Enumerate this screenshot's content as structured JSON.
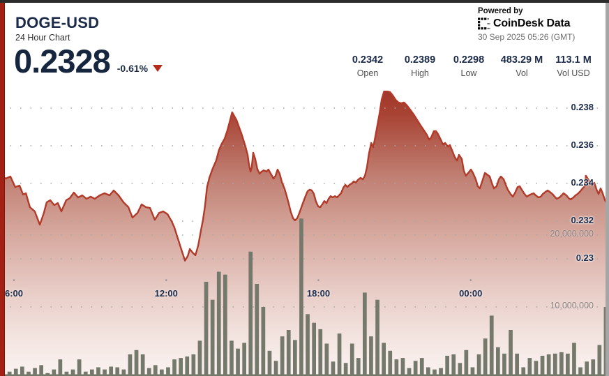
{
  "header": {
    "symbol": "DOGE-USD",
    "subtitle": "24 Hour Chart",
    "price": "0.2328",
    "change_pct": "-0.61%",
    "change_direction": "down",
    "powered_by": "Powered by",
    "brand": "CoinDesk Data",
    "timestamp": "30 Sep 2025 05:26 (GMT)"
  },
  "stats": {
    "items": [
      {
        "value": "0.2342",
        "label": "Open"
      },
      {
        "value": "0.2389",
        "label": "High"
      },
      {
        "value": "0.2298",
        "label": "Low"
      },
      {
        "value": "483.29 M",
        "label": "Vol"
      },
      {
        "value": "113.1 M",
        "label": "Vol USD"
      }
    ]
  },
  "colors": {
    "accent_line": "#b23a29",
    "left_bar": "#a32114",
    "navy_text": "#1b2b49",
    "volume_bar": "#75796b",
    "grid_dot": "#a8a8a8",
    "delta_triangle": "#b7291b"
  },
  "chart_data": {
    "type": "area",
    "title": "DOGE-USD 24 Hour Chart",
    "grid": "dotted-horizontal",
    "x_axis": {
      "start_time": "05:30",
      "span_hours": 24,
      "tick_labels": [
        "6:00",
        "12:00",
        "18:00",
        "00:00"
      ],
      "tick_hours_from_start": [
        0.55,
        6.55,
        12.55,
        18.55
      ]
    },
    "price_axis": {
      "side": "right",
      "tick_labels": [
        "0.238",
        "0.236",
        "0.234",
        "0.232",
        "0.23"
      ],
      "tick_values": [
        0.238,
        0.236,
        0.234,
        0.232,
        0.23
      ],
      "range": [
        0.229,
        0.2389
      ]
    },
    "volume_axis": {
      "side": "right",
      "tick_labels": [
        "20,000,000",
        "10,000,000"
      ],
      "tick_values": [
        20000000,
        10000000
      ]
    },
    "price_series": {
      "name": "DOGE-USD price",
      "color": "#b23a29",
      "t_hours": [
        0,
        0.22,
        0.41,
        0.6,
        0.77,
        0.91,
        1.02,
        1.18,
        1.37,
        1.57,
        1.73,
        1.84,
        1.98,
        2.14,
        2.28,
        2.42,
        2.61,
        2.75,
        2.91,
        3.08,
        3.24,
        3.41,
        3.57,
        3.74,
        3.93,
        4.12,
        4.32,
        4.48,
        4.67,
        4.87,
        5.06,
        5.22,
        5.42,
        5.58,
        5.75,
        5.91,
        6.1,
        6.27,
        6.43,
        6.6,
        6.76,
        6.87,
        7.01,
        7.15,
        7.29,
        7.4,
        7.48,
        7.59,
        7.7,
        7.81,
        7.92,
        8,
        8.08,
        8.16,
        8.25,
        8.38,
        8.52,
        8.63,
        8.74,
        8.85,
        8.96,
        9.07,
        9.15,
        9.24,
        9.32,
        9.43,
        9.51,
        9.59,
        9.68,
        9.76,
        9.81,
        9.87,
        9.92,
        9.98,
        10.06,
        10.14,
        10.23,
        10.31,
        10.39,
        10.5,
        10.58,
        10.67,
        10.78,
        10.86,
        10.94,
        11.02,
        11.11,
        11.22,
        11.3,
        11.38,
        11.46,
        11.55,
        11.63,
        11.71,
        11.79,
        11.88,
        11.96,
        12.04,
        12.12,
        12.21,
        12.29,
        12.37,
        12.45,
        12.54,
        12.62,
        12.7,
        12.78,
        12.87,
        12.95,
        13.03,
        13.11,
        13.2,
        13.28,
        13.36,
        13.44,
        13.53,
        13.61,
        13.69,
        13.77,
        13.86,
        13.94,
        14.02,
        14.1,
        14.21,
        14.3,
        14.38,
        14.46,
        14.54,
        14.63,
        14.71,
        14.79,
        14.87,
        14.96,
        15.04,
        15.15,
        15.26,
        15.37,
        15.48,
        15.59,
        15.7,
        15.81,
        15.92,
        16.03,
        16.16,
        16.3,
        16.44,
        16.58,
        16.71,
        16.82,
        16.91,
        16.99,
        17.1,
        17.18,
        17.26,
        17.37,
        17.46,
        17.54,
        17.65,
        17.73,
        17.81,
        17.92,
        18.01,
        18.09,
        18.2,
        18.28,
        18.36,
        18.47,
        18.56,
        18.64,
        18.75,
        18.83,
        18.91,
        19.02,
        19.11,
        19.19,
        19.3,
        19.38,
        19.46,
        19.57,
        19.66,
        19.74,
        19.85,
        19.93,
        20.01,
        20.12,
        20.21,
        20.29,
        20.4,
        20.48,
        20.56,
        20.67,
        20.76,
        20.84,
        20.95,
        21.03,
        21.11,
        21.22,
        21.31,
        21.39,
        21.5,
        21.58,
        21.66,
        21.77,
        21.86,
        21.94,
        22.05,
        22.13,
        22.21,
        22.32,
        22.41,
        22.49,
        22.6,
        22.68,
        22.76,
        22.87,
        22.96,
        23.04,
        23.09,
        23.23,
        23.31,
        23.42,
        23.51,
        23.59,
        23.67,
        23.75,
        23.84,
        23.92,
        24
      ],
      "prices": [
        0.23448,
        0.23426,
        0.23437,
        0.23381,
        0.23389,
        0.23341,
        0.23348,
        0.23274,
        0.23252,
        0.23181,
        0.23244,
        0.233,
        0.23311,
        0.23285,
        0.23296,
        0.23252,
        0.23311,
        0.23322,
        0.23352,
        0.23326,
        0.23337,
        0.23319,
        0.2333,
        0.23319,
        0.23337,
        0.23348,
        0.23337,
        0.23363,
        0.23337,
        0.233,
        0.23274,
        0.23219,
        0.23244,
        0.23289,
        0.23274,
        0.2327,
        0.23207,
        0.23244,
        0.23252,
        0.23237,
        0.232,
        0.23167,
        0.23107,
        0.23048,
        0.2299,
        0.23015,
        0.23052,
        0.23033,
        0.23019,
        0.2307,
        0.23152,
        0.23207,
        0.23281,
        0.23381,
        0.2343,
        0.23478,
        0.23522,
        0.23578,
        0.23611,
        0.23637,
        0.23681,
        0.23737,
        0.23778,
        0.23756,
        0.23737,
        0.23696,
        0.23667,
        0.23633,
        0.23593,
        0.23552,
        0.23504,
        0.23463,
        0.23485,
        0.23563,
        0.2353,
        0.23478,
        0.23452,
        0.23463,
        0.2347,
        0.23463,
        0.23474,
        0.23452,
        0.23426,
        0.23441,
        0.23474,
        0.23452,
        0.23407,
        0.2337,
        0.23333,
        0.23293,
        0.23248,
        0.23215,
        0.23204,
        0.23215,
        0.23241,
        0.23274,
        0.23304,
        0.23333,
        0.23359,
        0.23367,
        0.23363,
        0.23344,
        0.23304,
        0.23278,
        0.23274,
        0.23289,
        0.23307,
        0.23296,
        0.23319,
        0.23333,
        0.23326,
        0.23333,
        0.23326,
        0.23337,
        0.23348,
        0.23378,
        0.23393,
        0.23381,
        0.23393,
        0.234,
        0.23411,
        0.23404,
        0.23419,
        0.2343,
        0.23422,
        0.23441,
        0.23485,
        0.23559,
        0.23615,
        0.23593,
        0.23648,
        0.23707,
        0.23774,
        0.23844,
        0.23896,
        0.23889,
        0.23885,
        0.23867,
        0.23844,
        0.2383,
        0.23826,
        0.2383,
        0.23815,
        0.23793,
        0.23767,
        0.23737,
        0.23707,
        0.23681,
        0.23659,
        0.23633,
        0.23644,
        0.23678,
        0.23678,
        0.23663,
        0.23633,
        0.23607,
        0.23615,
        0.23596,
        0.23604,
        0.23578,
        0.23541,
        0.23522,
        0.23552,
        0.2353,
        0.23467,
        0.23441,
        0.23459,
        0.23474,
        0.23456,
        0.23422,
        0.23385,
        0.23374,
        0.23419,
        0.23456,
        0.23448,
        0.23437,
        0.23404,
        0.23374,
        0.23385,
        0.23422,
        0.23437,
        0.23422,
        0.23393,
        0.23367,
        0.23344,
        0.2333,
        0.23348,
        0.23381,
        0.23385,
        0.23367,
        0.23344,
        0.2333,
        0.23337,
        0.23344,
        0.23348,
        0.23337,
        0.23326,
        0.2333,
        0.23344,
        0.23356,
        0.23363,
        0.23356,
        0.23344,
        0.2333,
        0.23319,
        0.23326,
        0.23337,
        0.23348,
        0.23337,
        0.23322,
        0.23315,
        0.23326,
        0.23337,
        0.23344,
        0.23359,
        0.23374,
        0.23385,
        0.23441,
        0.23411,
        0.23393,
        0.23404,
        0.23367,
        0.23344,
        0.23374,
        0.23348,
        0.23311,
        0.23293,
        0.23281
      ]
    },
    "volume_series": {
      "name": "Volume",
      "color": "#75796b",
      "unit": "millions",
      "max_value_millions": 22.3,
      "values_millions": [
        0.6,
        1.0,
        1.4,
        1.7,
        1.0,
        1.5,
        1.9,
        0.8,
        1.3,
        2.7,
        1.0,
        1.3,
        2.7,
        1.0,
        1.3,
        1.6,
        1.3,
        1.7,
        1.6,
        1.3,
        3.4,
        4.0,
        3.4,
        1.5,
        1.9,
        1.3,
        1.6,
        2.7,
        2.9,
        3.1,
        3.4,
        5.3,
        13.5,
        11.0,
        14.9,
        14.5,
        5.3,
        4.2,
        5.0,
        17.7,
        13.2,
        10.0,
        3.9,
        2.5,
        5.9,
        6.8,
        5.4,
        22.3,
        9.0,
        7.8,
        6.9,
        4.9,
        2.4,
        6.3,
        2.2,
        4.9,
        2.9,
        12.0,
        5.9,
        11.0,
        5.0,
        3.9,
        2.7,
        2.9,
        1.5,
        2.5,
        2.9,
        1.6,
        1.3,
        1.5,
        3.2,
        3.4,
        2.2,
        4.0,
        1.6,
        3.4,
        5.6,
        8.8,
        4.4,
        3.5,
        6.8,
        3.5,
        1.6,
        2.9,
        2.5,
        3.2,
        3.4,
        3.5,
        3.7,
        3.5,
        5.0,
        1.6,
        2.4,
        2.7,
        4.7,
        10.0
      ]
    }
  }
}
